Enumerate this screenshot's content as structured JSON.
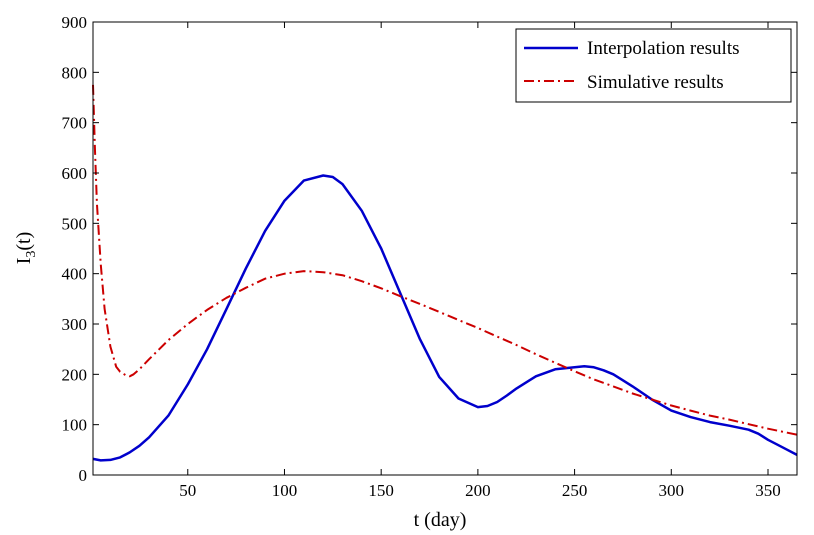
{
  "chart_data": {
    "type": "line",
    "title": "",
    "xlabel": "t (day)",
    "ylabel": {
      "base": "I",
      "sub": "3",
      "suffix": "(t)"
    },
    "xlim": [
      1,
      365
    ],
    "ylim": [
      0,
      900
    ],
    "xticks": [
      50,
      100,
      150,
      200,
      250,
      300,
      350
    ],
    "yticks": [
      0,
      100,
      200,
      300,
      400,
      500,
      600,
      700,
      800,
      900
    ],
    "grid": false,
    "legend_position": "top-right",
    "series": [
      {
        "name": "Interpolation results",
        "color": "#0000cc",
        "style": "solid",
        "x": [
          1,
          5,
          10,
          15,
          20,
          25,
          30,
          40,
          50,
          60,
          70,
          80,
          90,
          100,
          110,
          120,
          125,
          130,
          140,
          150,
          160,
          170,
          180,
          190,
          200,
          205,
          210,
          215,
          220,
          230,
          240,
          250,
          255,
          260,
          265,
          270,
          280,
          290,
          300,
          310,
          320,
          330,
          340,
          345,
          350,
          355,
          360,
          365
        ],
        "values": [
          32,
          29,
          30,
          35,
          45,
          58,
          75,
          118,
          180,
          250,
          330,
          410,
          485,
          545,
          585,
          595,
          592,
          578,
          525,
          450,
          360,
          270,
          195,
          152,
          135,
          137,
          145,
          158,
          172,
          196,
          210,
          214,
          216,
          214,
          208,
          200,
          176,
          150,
          128,
          115,
          105,
          98,
          90,
          82,
          70,
          60,
          50,
          40
        ]
      },
      {
        "name": "Simulative results",
        "color": "#cc0000",
        "style": "dashdot",
        "x": [
          1,
          2,
          3,
          5,
          7,
          10,
          13,
          15,
          18,
          20,
          22,
          25,
          30,
          40,
          50,
          60,
          70,
          80,
          90,
          100,
          110,
          120,
          130,
          140,
          150,
          160,
          170,
          180,
          190,
          200,
          210,
          220,
          230,
          240,
          250,
          260,
          270,
          280,
          290,
          300,
          310,
          320,
          330,
          340,
          350,
          360,
          365
        ],
        "values": [
          775,
          650,
          540,
          420,
          330,
          255,
          215,
          205,
          198,
          196,
          200,
          210,
          230,
          268,
          300,
          328,
          352,
          372,
          390,
          400,
          405,
          403,
          397,
          385,
          371,
          355,
          340,
          324,
          308,
          292,
          275,
          258,
          240,
          223,
          206,
          190,
          176,
          162,
          150,
          138,
          128,
          118,
          110,
          101,
          92,
          84,
          80
        ]
      }
    ]
  }
}
